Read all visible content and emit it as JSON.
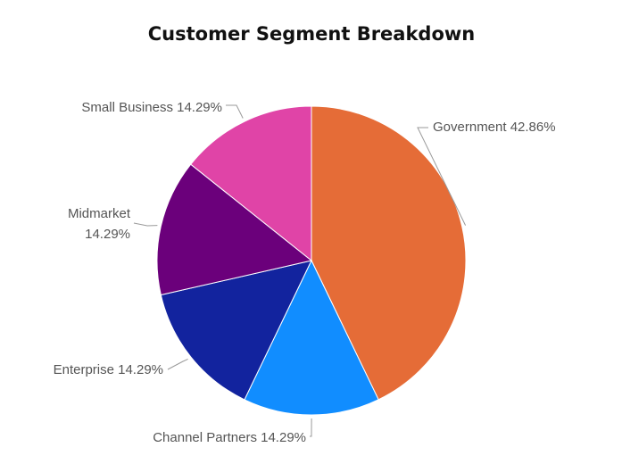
{
  "chart_data": {
    "type": "pie",
    "title": "Customer Segment Breakdown",
    "start_angle_deg": 0,
    "direction": "clockwise",
    "slices": [
      {
        "name": "Government",
        "value": 42.86,
        "label": "Government 42.86%",
        "color": "#E56C37"
      },
      {
        "name": "Channel Partners",
        "value": 14.29,
        "label": "Channel Partners 14.29%",
        "color": "#118DFF"
      },
      {
        "name": "Enterprise",
        "value": 14.29,
        "label": "Enterprise 14.29%",
        "color": "#12239E"
      },
      {
        "name": "Midmarket",
        "value": 14.29,
        "label_lines": [
          "Midmarket",
          "14.29%"
        ],
        "color": "#6B007B"
      },
      {
        "name": "Small Business",
        "value": 14.29,
        "label": "Small Business 14.29%",
        "color": "#E044A7"
      }
    ]
  }
}
